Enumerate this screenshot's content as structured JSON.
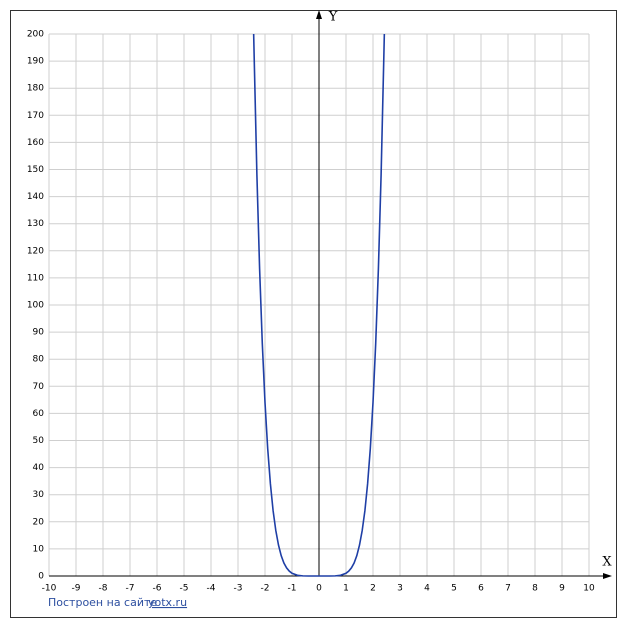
{
  "chart_data": {
    "type": "line",
    "x_label": "X",
    "y_label": "Y",
    "x": [
      -2.42,
      -2.4,
      -2.3,
      -2.2,
      -2.1,
      -2.0,
      -1.9,
      -1.8,
      -1.7,
      -1.6,
      -1.5,
      -1.4,
      -1.3,
      -1.2,
      -1.1,
      -1.0,
      -0.8,
      -0.6,
      -0.4,
      0,
      0.4,
      0.6,
      0.8,
      1.0,
      1.1,
      1.2,
      1.3,
      1.4,
      1.5,
      1.6,
      1.7,
      1.8,
      1.9,
      2.0,
      2.1,
      2.2,
      2.3,
      2.4,
      2.42
    ],
    "series": [
      {
        "color": "#1f3fa6",
        "values": [
          200,
          191.1,
          148.0,
          113.4,
          85.8,
          64,
          47.0,
          34.0,
          24.1,
          16.8,
          11.4,
          7.5,
          4.8,
          3.0,
          1.8,
          1,
          0.26,
          0.05,
          0,
          0,
          0,
          0.05,
          0.26,
          1,
          1.8,
          3.0,
          4.8,
          7.5,
          11.4,
          16.8,
          24.1,
          34.0,
          47.0,
          64,
          85.8,
          113.4,
          148.0,
          191.1,
          200
        ]
      }
    ],
    "xlim": [
      -10,
      10
    ],
    "ylim": [
      0,
      200
    ],
    "xticks": [
      -10,
      -9,
      -8,
      -7,
      -6,
      -5,
      -4,
      -3,
      -2,
      -1,
      0,
      1,
      2,
      3,
      4,
      5,
      6,
      7,
      8,
      9,
      10
    ],
    "yticks": [
      0,
      10,
      20,
      30,
      40,
      50,
      60,
      70,
      80,
      90,
      100,
      110,
      120,
      130,
      140,
      150,
      160,
      170,
      180,
      190,
      200
    ],
    "grid": true
  },
  "footer": {
    "text": "Построен на сайте",
    "link": "yotx.ru"
  }
}
